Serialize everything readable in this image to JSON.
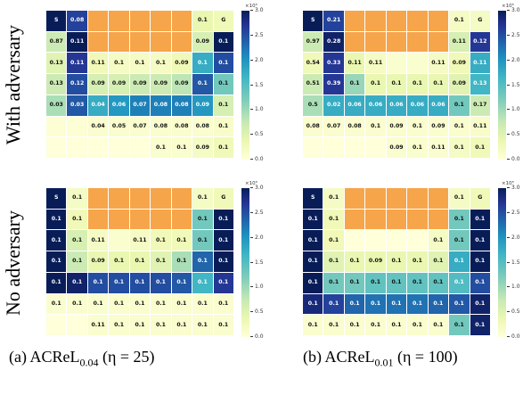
{
  "row_labels": [
    "With adversary",
    "No adversary"
  ],
  "captions": [
    {
      "label": "(a)",
      "method": "ACReL",
      "sub": "0.04",
      "param": "(η = 25)"
    },
    {
      "label": "(b)",
      "method": "ACReL",
      "sub": "0.01",
      "param": "(η = 100)"
    }
  ],
  "colorbar": {
    "exponent": "×10⁵",
    "ticks": [
      "3.0",
      "2.5",
      "2.0",
      "1.5",
      "1.0",
      "0.5",
      "0.0"
    ],
    "max": 3.0
  },
  "colors": {
    "blocked": "#f6a54a",
    "scale": [
      "#ffffd9",
      "#edf8b1",
      "#c7e9b4",
      "#7fcdbb",
      "#41b6c4",
      "#1d91c0",
      "#225ea8",
      "#253494",
      "#081d58"
    ]
  },
  "chart_data": [
    {
      "type": "heatmap",
      "panel": "(a) With adversary",
      "rows": [
        [
          {
            "t": "S",
            "v": 3.0
          },
          {
            "t": "0.08",
            "v": 2.5
          },
          {
            "t": "",
            "o": 1
          },
          {
            "t": "",
            "o": 1
          },
          {
            "t": "",
            "o": 1
          },
          {
            "t": "",
            "o": 1
          },
          {
            "t": "",
            "o": 1
          },
          {
            "t": "0.1",
            "v": 0.4
          },
          {
            "t": "G",
            "v": 0.3
          }
        ],
        [
          {
            "t": "0.87",
            "v": 0.7
          },
          {
            "t": "0.11",
            "v": 3.0
          },
          {
            "t": "",
            "o": 1
          },
          {
            "t": "",
            "o": 1
          },
          {
            "t": "",
            "o": 1
          },
          {
            "t": "",
            "o": 1
          },
          {
            "t": "",
            "o": 1
          },
          {
            "t": "0.09",
            "v": 0.6
          },
          {
            "t": "0.1",
            "v": 3.0
          }
        ],
        [
          {
            "t": "0.13",
            "v": 0.5
          },
          {
            "t": "0.11",
            "v": 2.6
          },
          {
            "t": "0.11",
            "v": 0.3
          },
          {
            "t": "0.1",
            "v": 0.2
          },
          {
            "t": "0.1",
            "v": 0.2
          },
          {
            "t": "0.1",
            "v": 0.2
          },
          {
            "t": "0.09",
            "v": 0.3
          },
          {
            "t": "0.1",
            "v": 1.6
          },
          {
            "t": "0.1",
            "v": 2.4
          }
        ],
        [
          {
            "t": "0.13",
            "v": 0.7
          },
          {
            "t": "0.12",
            "v": 2.4
          },
          {
            "t": "0.09",
            "v": 0.6
          },
          {
            "t": "0.09",
            "v": 0.6
          },
          {
            "t": "0.09",
            "v": 0.7
          },
          {
            "t": "0.09",
            "v": 0.7
          },
          {
            "t": "0.09",
            "v": 0.8
          },
          {
            "t": "0.1",
            "v": 2.3
          },
          {
            "t": "0.1",
            "v": 1.2
          }
        ],
        [
          {
            "t": "0.03",
            "v": 0.9
          },
          {
            "t": "0.03",
            "v": 2.3
          },
          {
            "t": "0.04",
            "v": 1.6
          },
          {
            "t": "0.06",
            "v": 1.8
          },
          {
            "t": "0.07",
            "v": 2.0
          },
          {
            "t": "0.08",
            "v": 2.0
          },
          {
            "t": "0.08",
            "v": 2.0
          },
          {
            "t": "0.09",
            "v": 1.8
          },
          {
            "t": "0.1",
            "v": 0.6
          },
          {
            "t": "0.1",
            "v": 0.5
          }
        ],
        [
          {
            "t": "",
            "v": 0.05
          },
          {
            "t": "",
            "v": 0.05
          },
          {
            "t": "0.04",
            "v": 0.1
          },
          {
            "t": "0.05",
            "v": 0.1
          },
          {
            "t": "0.07",
            "v": 0.1
          },
          {
            "t": "0.08",
            "v": 0.1
          },
          {
            "t": "0.08",
            "v": 0.1
          },
          {
            "t": "0.08",
            "v": 0.1
          },
          {
            "t": "0.1",
            "v": 0.15
          },
          {
            "t": "0.11",
            "v": 0.1
          }
        ],
        [
          {
            "t": "",
            "v": 0.0
          },
          {
            "t": "",
            "v": 0.0
          },
          {
            "t": "",
            "v": 0.0
          },
          {
            "t": "",
            "v": 0.0
          },
          {
            "t": "",
            "v": 0.0
          },
          {
            "t": "0.1",
            "v": 0.1
          },
          {
            "t": "0.1",
            "v": 0.1
          },
          {
            "t": "0.09",
            "v": 0.2
          },
          {
            "t": "0.1",
            "v": 0.3
          }
        ]
      ]
    },
    {
      "type": "heatmap",
      "panel": "(b) With adversary",
      "rows": [
        [
          {
            "t": "S",
            "v": 3.0
          },
          {
            "t": "0.21",
            "v": 2.5
          },
          {
            "t": "",
            "o": 1
          },
          {
            "t": "",
            "o": 1
          },
          {
            "t": "",
            "o": 1
          },
          {
            "t": "",
            "o": 1
          },
          {
            "t": "",
            "o": 1
          },
          {
            "t": "0.1",
            "v": 0.2
          },
          {
            "t": "G",
            "v": 0.2
          }
        ],
        [
          {
            "t": "0.97",
            "v": 0.7
          },
          {
            "t": "0.28",
            "v": 2.9
          },
          {
            "t": "",
            "o": 1
          },
          {
            "t": "",
            "o": 1
          },
          {
            "t": "",
            "o": 1
          },
          {
            "t": "",
            "o": 1
          },
          {
            "t": "",
            "o": 1
          },
          {
            "t": "0.11",
            "v": 0.6
          },
          {
            "t": "0.12",
            "v": 2.6
          }
        ],
        [
          {
            "t": "0.54",
            "v": 0.3
          },
          {
            "t": "0.33",
            "v": 2.6
          },
          {
            "t": "0.11",
            "v": 0.4
          },
          {
            "t": "0.11",
            "v": 0.2
          },
          {
            "t": "",
            "v": 0.1
          },
          {
            "t": "",
            "v": 0.1
          },
          {
            "t": "0.11",
            "v": 0.2
          },
          {
            "t": "0.09",
            "v": 0.3
          },
          {
            "t": "0.11",
            "v": 1.6
          },
          {
            "t": "0.13",
            "v": 2.2
          }
        ],
        [
          {
            "t": "0.51",
            "v": 0.7
          },
          {
            "t": "0.39",
            "v": 2.6
          },
          {
            "t": "0.1",
            "v": 1.0
          },
          {
            "t": "0.1",
            "v": 0.4
          },
          {
            "t": "0.1",
            "v": 0.4
          },
          {
            "t": "0.1",
            "v": 0.4
          },
          {
            "t": "0.1",
            "v": 0.4
          },
          {
            "t": "0.09",
            "v": 0.5
          },
          {
            "t": "0.13",
            "v": 1.5
          },
          {
            "t": "0.14",
            "v": 1.2
          }
        ],
        [
          {
            "t": "0.5",
            "v": 0.9
          },
          {
            "t": "0.02",
            "v": 1.6
          },
          {
            "t": "0.06",
            "v": 1.6
          },
          {
            "t": "0.06",
            "v": 1.6
          },
          {
            "t": "0.06",
            "v": 1.6
          },
          {
            "t": "0.06",
            "v": 1.6
          },
          {
            "t": "0.06",
            "v": 1.6
          },
          {
            "t": "0.1",
            "v": 1.2
          },
          {
            "t": "0.17",
            "v": 0.7
          },
          {
            "t": "0.15",
            "v": 0.5
          }
        ],
        [
          {
            "t": "0.08",
            "v": 0.1
          },
          {
            "t": "0.07",
            "v": 0.1
          },
          {
            "t": "0.08",
            "v": 0.1
          },
          {
            "t": "0.1",
            "v": 0.1
          },
          {
            "t": "0.09",
            "v": 0.1
          },
          {
            "t": "0.1",
            "v": 0.1
          },
          {
            "t": "0.09",
            "v": 0.1
          },
          {
            "t": "0.1",
            "v": 0.1
          },
          {
            "t": "0.11",
            "v": 0.15
          },
          {
            "t": "0.12",
            "v": 0.1
          }
        ],
        [
          {
            "t": "",
            "v": 0.0
          },
          {
            "t": "",
            "v": 0.0
          },
          {
            "t": "",
            "v": 0.0
          },
          {
            "t": "",
            "v": 0.0
          },
          {
            "t": "0.09",
            "v": 0.1
          },
          {
            "t": "0.1",
            "v": 0.1
          },
          {
            "t": "0.11",
            "v": 0.1
          },
          {
            "t": "0.1",
            "v": 0.2
          },
          {
            "t": "0.1",
            "v": 0.3
          }
        ]
      ]
    },
    {
      "type": "heatmap",
      "panel": "(a) No adversary",
      "rows": [
        [
          {
            "t": "S",
            "v": 3.0
          },
          {
            "t": "0.1",
            "v": 0.2
          },
          {
            "t": "",
            "o": 1
          },
          {
            "t": "",
            "o": 1
          },
          {
            "t": "",
            "o": 1
          },
          {
            "t": "",
            "o": 1
          },
          {
            "t": "",
            "o": 1
          },
          {
            "t": "0.1",
            "v": 0.2
          },
          {
            "t": "G",
            "v": 0.3
          }
        ],
        [
          {
            "t": "0.1",
            "v": 3.0
          },
          {
            "t": "0.1",
            "v": 0.3
          },
          {
            "t": "",
            "o": 1
          },
          {
            "t": "",
            "o": 1
          },
          {
            "t": "",
            "o": 1
          },
          {
            "t": "",
            "o": 1
          },
          {
            "t": "",
            "o": 1
          },
          {
            "t": "0.1",
            "v": 1.2
          },
          {
            "t": "0.1",
            "v": 3.0
          }
        ],
        [
          {
            "t": "0.1",
            "v": 3.0
          },
          {
            "t": "0.1",
            "v": 0.6
          },
          {
            "t": "0.11",
            "v": 0.2
          },
          {
            "t": "",
            "v": 0.1
          },
          {
            "t": "0.11",
            "v": 0.2
          },
          {
            "t": "0.1",
            "v": 0.3
          },
          {
            "t": "0.1",
            "v": 0.3
          },
          {
            "t": "0.1",
            "v": 1.2
          },
          {
            "t": "0.1",
            "v": 3.0
          }
        ],
        [
          {
            "t": "0.1",
            "v": 3.0
          },
          {
            "t": "0.1",
            "v": 0.7
          },
          {
            "t": "0.09",
            "v": 0.4
          },
          {
            "t": "0.1",
            "v": 0.4
          },
          {
            "t": "0.1",
            "v": 0.4
          },
          {
            "t": "0.1",
            "v": 0.5
          },
          {
            "t": "0.1",
            "v": 0.9
          },
          {
            "t": "0.1",
            "v": 2.2
          },
          {
            "t": "0.1",
            "v": 3.0
          }
        ],
        [
          {
            "t": "0.1",
            "v": 3.0
          },
          {
            "t": "0.1",
            "v": 2.9
          },
          {
            "t": "0.1",
            "v": 2.4
          },
          {
            "t": "0.1",
            "v": 2.4
          },
          {
            "t": "0.1",
            "v": 2.4
          },
          {
            "t": "0.1",
            "v": 2.4
          },
          {
            "t": "0.1",
            "v": 2.3
          },
          {
            "t": "0.1",
            "v": 1.5
          },
          {
            "t": "0.1",
            "v": 2.6
          }
        ],
        [
          {
            "t": "0.1",
            "v": 0.1
          },
          {
            "t": "0.1",
            "v": 0.1
          },
          {
            "t": "0.1",
            "v": 0.1
          },
          {
            "t": "0.1",
            "v": 0.1
          },
          {
            "t": "0.1",
            "v": 0.1
          },
          {
            "t": "0.1",
            "v": 0.1
          },
          {
            "t": "0.1",
            "v": 0.1
          },
          {
            "t": "0.1",
            "v": 0.1
          },
          {
            "t": "0.1",
            "v": 0.1
          }
        ],
        [
          {
            "t": "",
            "v": 0.0
          },
          {
            "t": "",
            "v": 0.0
          },
          {
            "t": "0.11",
            "v": 0.1
          },
          {
            "t": "0.1",
            "v": 0.1
          },
          {
            "t": "0.1",
            "v": 0.1
          },
          {
            "t": "0.1",
            "v": 0.1
          },
          {
            "t": "0.1",
            "v": 0.1
          },
          {
            "t": "0.1",
            "v": 0.1
          },
          {
            "t": "0.1",
            "v": 0.1
          }
        ]
      ]
    },
    {
      "type": "heatmap",
      "panel": "(b) No adversary",
      "rows": [
        [
          {
            "t": "S",
            "v": 3.0
          },
          {
            "t": "0.1",
            "v": 0.2
          },
          {
            "t": "",
            "o": 1
          },
          {
            "t": "",
            "o": 1
          },
          {
            "t": "",
            "o": 1
          },
          {
            "t": "",
            "o": 1
          },
          {
            "t": "",
            "o": 1
          },
          {
            "t": "0.1",
            "v": 0.2
          },
          {
            "t": "G",
            "v": 0.3
          }
        ],
        [
          {
            "t": "0.1",
            "v": 3.0
          },
          {
            "t": "0.1",
            "v": 0.3
          },
          {
            "t": "",
            "o": 1
          },
          {
            "t": "",
            "o": 1
          },
          {
            "t": "",
            "o": 1
          },
          {
            "t": "",
            "o": 1
          },
          {
            "t": "",
            "o": 1
          },
          {
            "t": "0.1",
            "v": 1.2
          },
          {
            "t": "0.1",
            "v": 3.0
          }
        ],
        [
          {
            "t": "0.1",
            "v": 3.0
          },
          {
            "t": "0.1",
            "v": 0.3
          },
          {
            "t": "",
            "v": 0.0
          },
          {
            "t": "",
            "v": 0.0
          },
          {
            "t": "",
            "v": 0.0
          },
          {
            "t": "",
            "v": 0.0
          },
          {
            "t": "0.1",
            "v": 0.2
          },
          {
            "t": "0.1",
            "v": 1.2
          },
          {
            "t": "0.1",
            "v": 3.0
          }
        ],
        [
          {
            "t": "0.1",
            "v": 3.0
          },
          {
            "t": "0.1",
            "v": 0.5
          },
          {
            "t": "0.1",
            "v": 0.4
          },
          {
            "t": "0.09",
            "v": 0.4
          },
          {
            "t": "0.1",
            "v": 0.4
          },
          {
            "t": "0.1",
            "v": 0.4
          },
          {
            "t": "0.1",
            "v": 0.5
          },
          {
            "t": "0.1",
            "v": 1.6
          },
          {
            "t": "0.1",
            "v": 3.0
          }
        ],
        [
          {
            "t": "0.1",
            "v": 3.0
          },
          {
            "t": "0.1",
            "v": 1.2
          },
          {
            "t": "0.1",
            "v": 1.2
          },
          {
            "t": "0.1",
            "v": 1.3
          },
          {
            "t": "0.1",
            "v": 1.3
          },
          {
            "t": "0.1",
            "v": 1.3
          },
          {
            "t": "0.1",
            "v": 1.3
          },
          {
            "t": "0.1",
            "v": 1.4
          },
          {
            "t": "0.1",
            "v": 2.4
          }
        ],
        [
          {
            "t": "0.1",
            "v": 2.8
          },
          {
            "t": "0.1",
            "v": 2.5
          },
          {
            "t": "0.1",
            "v": 2.2
          },
          {
            "t": "0.1",
            "v": 2.1
          },
          {
            "t": "0.1",
            "v": 2.1
          },
          {
            "t": "0.1",
            "v": 2.1
          },
          {
            "t": "0.1",
            "v": 2.2
          },
          {
            "t": "0.1",
            "v": 2.3
          },
          {
            "t": "0.1",
            "v": 2.9
          }
        ],
        [
          {
            "t": "0.1",
            "v": 0.1
          },
          {
            "t": "0.1",
            "v": 0.1
          },
          {
            "t": "0.1",
            "v": 0.1
          },
          {
            "t": "0.1",
            "v": 0.1
          },
          {
            "t": "0.1",
            "v": 0.1
          },
          {
            "t": "0.1",
            "v": 0.1
          },
          {
            "t": "0.1",
            "v": 0.1
          },
          {
            "t": "0.1",
            "v": 1.2
          },
          {
            "t": "0.1",
            "v": 2.9
          }
        ]
      ]
    }
  ]
}
